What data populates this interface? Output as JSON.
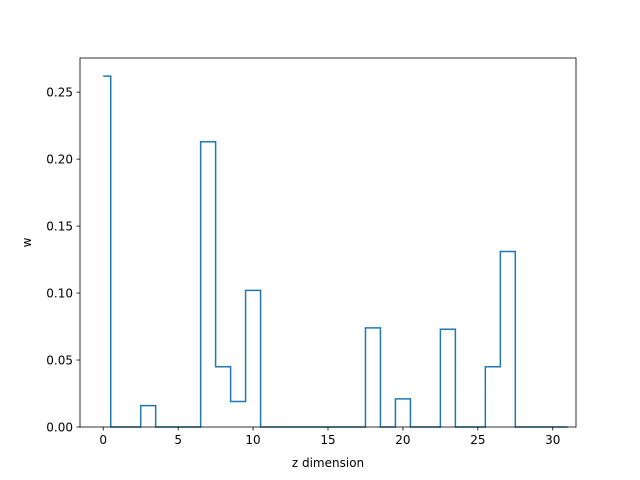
{
  "chart_data": {
    "type": "line",
    "drawstyle": "steps-mid",
    "title": "",
    "xlabel": "z dimension",
    "ylabel": "w",
    "xlim": [
      -1.55,
      31.55
    ],
    "ylim": [
      0.0,
      0.2755
    ],
    "xticks": [
      0,
      5,
      10,
      15,
      20,
      25,
      30
    ],
    "xtick_labels": [
      "0",
      "5",
      "10",
      "15",
      "20",
      "25",
      "30"
    ],
    "yticks": [
      0.0,
      0.05,
      0.1,
      0.15,
      0.2,
      0.25
    ],
    "ytick_labels": [
      "0.00",
      "0.05",
      "0.10",
      "0.15",
      "0.20",
      "0.25"
    ],
    "grid": false,
    "legend": "none",
    "series": [
      {
        "color": "#1f77b4",
        "x": [
          0,
          1,
          2,
          3,
          4,
          5,
          6,
          7,
          8,
          9,
          10,
          11,
          12,
          13,
          14,
          15,
          16,
          17,
          18,
          19,
          20,
          21,
          22,
          23,
          24,
          25,
          26,
          27,
          28,
          29,
          30,
          31
        ],
        "values": [
          0.262,
          0.0,
          0.0,
          0.016,
          0.0,
          0.0,
          0.0,
          0.213,
          0.045,
          0.019,
          0.102,
          0.0,
          0.0,
          0.0,
          0.0,
          0.0,
          0.0,
          0.0,
          0.074,
          0.0,
          0.021,
          0.0,
          0.0,
          0.073,
          0.0,
          0.0,
          0.045,
          0.131,
          0.0,
          0.0,
          0.0,
          0.0
        ]
      }
    ]
  }
}
